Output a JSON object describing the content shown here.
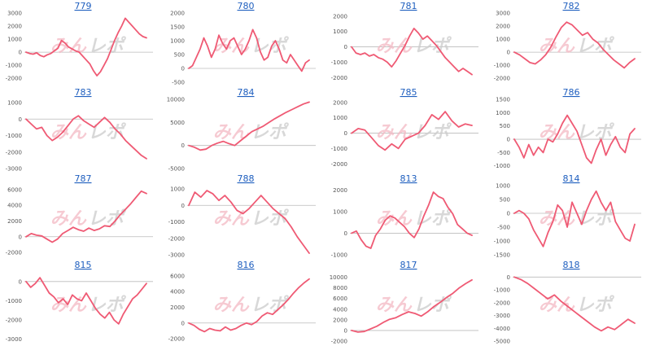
{
  "watermark": "みんレポ",
  "colors": {
    "line": "#ef5a74",
    "axis": "#bbbbbb",
    "title": "#1f5fbf",
    "watermark_pink": "#f3b9c4",
    "watermark_gray": "#cccccc"
  },
  "chart_data": [
    {
      "type": "line",
      "title": "779",
      "yticks": [
        3000,
        2000,
        1000,
        0,
        -1000,
        -2000
      ],
      "ylim": [
        -2300,
        3000
      ],
      "values": [
        0,
        -100,
        -150,
        -50,
        -250,
        -350,
        -200,
        -100,
        100,
        300,
        900,
        700,
        400,
        250,
        100,
        0,
        -300,
        -600,
        -900,
        -1400,
        -1800,
        -1500,
        -1000,
        -500,
        200,
        900,
        1500,
        2000,
        2600,
        2300,
        2000,
        1700,
        1400,
        1200,
        1100
      ]
    },
    {
      "type": "line",
      "title": "780",
      "yticks": [
        2000,
        1500,
        1000,
        500,
        0,
        -500
      ],
      "ylim": [
        -500,
        2000
      ],
      "values": [
        0,
        100,
        400,
        700,
        1100,
        800,
        400,
        700,
        1200,
        900,
        700,
        1000,
        1100,
        800,
        500,
        700,
        1000,
        1400,
        1100,
        600,
        300,
        400,
        800,
        1000,
        700,
        300,
        200,
        500,
        300,
        100,
        -100,
        200,
        300
      ]
    },
    {
      "type": "line",
      "title": "781",
      "yticks": [
        2000,
        1000,
        0,
        -1000,
        -2000
      ],
      "ylim": [
        -2300,
        2200
      ],
      "values": [
        0,
        -400,
        -500,
        -400,
        -600,
        -500,
        -700,
        -800,
        -1000,
        -1300,
        -900,
        -400,
        100,
        700,
        1200,
        900,
        500,
        700,
        400,
        100,
        -300,
        -700,
        -1000,
        -1300,
        -1600,
        -1400,
        -1600,
        -1800
      ]
    },
    {
      "type": "line",
      "title": "782",
      "yticks": [
        3000,
        2000,
        1000,
        0,
        -1000,
        -2000
      ],
      "ylim": [
        -2300,
        3000
      ],
      "values": [
        0,
        -200,
        -500,
        -800,
        -900,
        -600,
        -200,
        400,
        1200,
        1900,
        2300,
        2100,
        1700,
        1300,
        1500,
        1000,
        700,
        200,
        -200,
        -600,
        -900,
        -1200,
        -800,
        -500
      ]
    },
    {
      "type": "line",
      "title": "783",
      "yticks": [
        1000,
        0,
        -1000,
        -2000,
        -3000
      ],
      "ylim": [
        -3000,
        1200
      ],
      "values": [
        0,
        -300,
        -600,
        -500,
        -1000,
        -1300,
        -1100,
        -800,
        -400,
        0,
        200,
        -100,
        -300,
        -500,
        -200,
        100,
        -200,
        -600,
        -900,
        -1300,
        -1600,
        -1900,
        -2200,
        -2400
      ]
    },
    {
      "type": "line",
      "title": "784",
      "yticks": [
        10000,
        5000,
        0,
        -5000
      ],
      "ylim": [
        -5000,
        10000
      ],
      "values": [
        0,
        -400,
        -1000,
        -800,
        0,
        500,
        900,
        400,
        0,
        1000,
        2000,
        3000,
        3600,
        4200,
        5000,
        5800,
        6500,
        7200,
        7800,
        8400,
        9000,
        9400
      ]
    },
    {
      "type": "line",
      "title": "785",
      "yticks": [
        2000,
        1000,
        0,
        -1000,
        -2000
      ],
      "ylim": [
        -2300,
        2200
      ],
      "values": [
        0,
        300,
        200,
        -300,
        -800,
        -1100,
        -700,
        -1000,
        -400,
        -200,
        0,
        500,
        1200,
        900,
        1400,
        800,
        400,
        600,
        500
      ]
    },
    {
      "type": "line",
      "title": "786",
      "yticks": [
        1500,
        1000,
        500,
        0,
        -500,
        -1000
      ],
      "ylim": [
        -1100,
        1500
      ],
      "values": [
        0,
        -300,
        -700,
        -200,
        -600,
        -300,
        -500,
        0,
        -100,
        200,
        600,
        900,
        600,
        300,
        -200,
        -700,
        -900,
        -400,
        0,
        -600,
        -200,
        100,
        -300,
        -500,
        200,
        400
      ]
    },
    {
      "type": "line",
      "title": "787",
      "yticks": [
        6000,
        4000,
        2000,
        0,
        -2000
      ],
      "ylim": [
        -2300,
        6500
      ],
      "values": [
        0,
        400,
        200,
        100,
        -300,
        -700,
        -300,
        400,
        800,
        1200,
        900,
        700,
        1100,
        800,
        1000,
        1400,
        1300,
        2000,
        2800,
        3500,
        4200,
        5000,
        5800,
        5500
      ]
    },
    {
      "type": "line",
      "title": "788",
      "yticks": [
        1000,
        0,
        -1000,
        -2000,
        -3000
      ],
      "ylim": [
        -3000,
        1200
      ],
      "values": [
        0,
        800,
        500,
        900,
        700,
        300,
        600,
        200,
        -300,
        -500,
        -200,
        200,
        600,
        200,
        -200,
        -500,
        -800,
        -1300,
        -1900,
        -2400,
        -2900
      ]
    },
    {
      "type": "line",
      "title": "813",
      "yticks": [
        2000,
        1000,
        0,
        -1000
      ],
      "ylim": [
        -1000,
        2200
      ],
      "values": [
        0,
        100,
        -300,
        -600,
        -700,
        -100,
        200,
        600,
        800,
        700,
        500,
        300,
        0,
        -200,
        200,
        800,
        1300,
        1900,
        1700,
        1600,
        1200,
        900,
        400,
        200,
        0,
        -100
      ]
    },
    {
      "type": "line",
      "title": "814",
      "yticks": [
        1000,
        500,
        0,
        -500,
        -1000,
        -1500
      ],
      "ylim": [
        -1500,
        1000
      ],
      "values": [
        0,
        100,
        0,
        -200,
        -600,
        -900,
        -1200,
        -700,
        -300,
        300,
        100,
        -500,
        400,
        0,
        -400,
        100,
        500,
        800,
        400,
        100,
        400,
        -300,
        -600,
        -900,
        -1000,
        -400
      ]
    },
    {
      "type": "line",
      "title": "815",
      "yticks": [
        0,
        -1000,
        -2000,
        -3000
      ],
      "ylim": [
        -3100,
        500
      ],
      "values": [
        0,
        -300,
        -100,
        200,
        -200,
        -600,
        -800,
        -1100,
        -900,
        -1200,
        -700,
        -900,
        -1000,
        -600,
        -1000,
        -1400,
        -1700,
        -1900,
        -1600,
        -2000,
        -2200,
        -1700,
        -1300,
        -900,
        -700,
        -400,
        -100
      ]
    },
    {
      "type": "line",
      "title": "816",
      "yticks": [
        6000,
        4000,
        2000,
        0,
        -2000
      ],
      "ylim": [
        -2300,
        6500
      ],
      "values": [
        0,
        -300,
        -800,
        -1100,
        -700,
        -900,
        -1000,
        -500,
        -900,
        -700,
        -300,
        0,
        -200,
        200,
        900,
        1300,
        1100,
        1700,
        2300,
        3000,
        3800,
        4500,
        5100,
        5600
      ]
    },
    {
      "type": "line",
      "title": "817",
      "yticks": [
        10000,
        8000,
        6000,
        4000,
        2000,
        0,
        -2000
      ],
      "ylim": [
        -2000,
        11000
      ],
      "values": [
        0,
        -300,
        -200,
        300,
        800,
        1500,
        2100,
        2400,
        3000,
        3500,
        3200,
        2700,
        3500,
        4500,
        5300,
        6200,
        7000,
        8000,
        8800,
        9500
      ]
    },
    {
      "type": "line",
      "title": "818",
      "yticks": [
        0,
        -1000,
        -2000,
        -3000,
        -4000,
        -5000
      ],
      "ylim": [
        -5000,
        400
      ],
      "values": [
        0,
        -200,
        -500,
        -900,
        -1300,
        -1700,
        -1400,
        -1900,
        -2300,
        -2700,
        -3100,
        -3500,
        -3900,
        -4200,
        -3900,
        -4100,
        -3700,
        -3300,
        -3600
      ]
    }
  ]
}
